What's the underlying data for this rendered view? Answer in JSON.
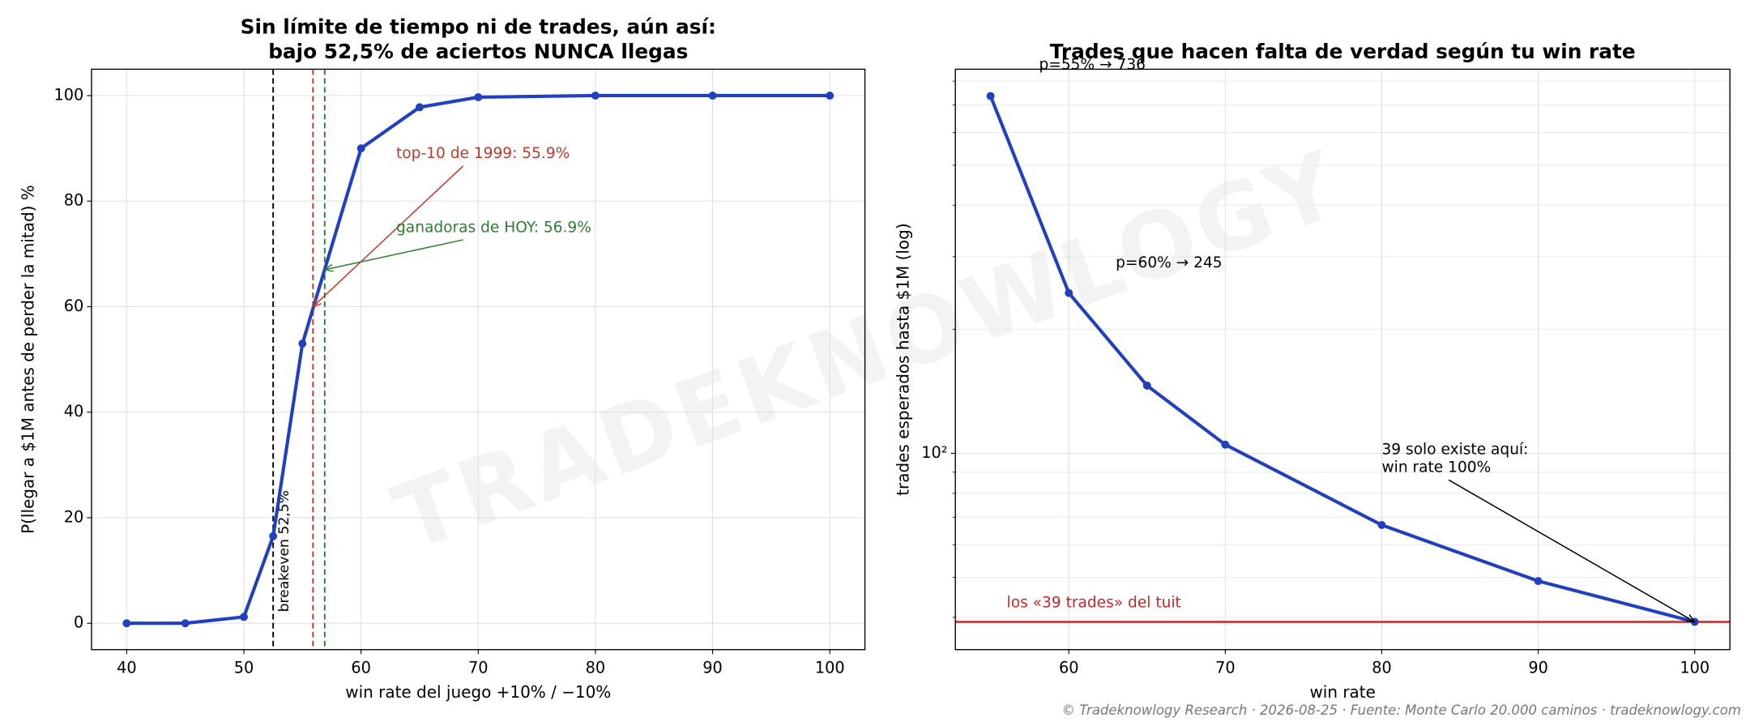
{
  "chart_data": [
    {
      "type": "line",
      "title": [
        "Sin límite de tiempo ni de trades, aún así:",
        "bajo 52,5% de aciertos NUNCA llegas"
      ],
      "xlabel": "win rate del juego +10% / −10%",
      "ylabel": "P(llegar a $1M antes de perder la mitad) %",
      "x": [
        40,
        45,
        50,
        52.5,
        55,
        60,
        65,
        70,
        80,
        90,
        100
      ],
      "values": [
        0,
        0,
        1.2,
        16.5,
        53,
        90,
        97.8,
        99.7,
        100,
        100,
        100
      ],
      "color": "#2140c0",
      "xlim": [
        37,
        103
      ],
      "ylim": [
        -5,
        105
      ],
      "xticks": [
        40,
        50,
        60,
        70,
        80,
        90,
        100
      ],
      "yticks": [
        0,
        20,
        40,
        60,
        80,
        100
      ],
      "grid": true,
      "log": false,
      "vlines": [
        {
          "x": 52.5,
          "color": "#000000",
          "label": "breakeven 52,5%"
        },
        {
          "x": 55.9,
          "color": "#c0392b"
        },
        {
          "x": 56.9,
          "color": "#2e7d32"
        }
      ],
      "annotations": [
        {
          "text": "top-10 de 1999: 55.9%",
          "xy": [
            55.9,
            60
          ],
          "xytext": [
            63,
            89
          ],
          "color": "#c0392b"
        },
        {
          "text": "ganadoras de HOY: 56.9%",
          "xy": [
            56.9,
            67
          ],
          "xytext": [
            63,
            75
          ],
          "color": "#2e7d32"
        }
      ]
    },
    {
      "type": "line",
      "title": [
        "Trades que hacen falta de verdad según tu win rate"
      ],
      "xlabel": "win rate",
      "ylabel": "trades esperados hasta $1M (log)",
      "x": [
        55,
        60,
        65,
        70,
        80,
        90,
        100
      ],
      "values": [
        736,
        245,
        146,
        105,
        67,
        49,
        39
      ],
      "color": "#2140c0",
      "xlim": [
        52.75,
        102.25
      ],
      "ylim": [
        33.4,
        855
      ],
      "xticks": [
        60,
        70,
        80,
        90,
        100
      ],
      "yticks": [
        {
          "value": 100,
          "label": "10²"
        }
      ],
      "yminor": [
        40,
        50,
        60,
        70,
        80,
        90,
        200,
        300,
        400,
        500,
        600,
        700,
        800
      ],
      "grid": true,
      "log": true,
      "hline": {
        "y": 39,
        "color": "#c62828",
        "label": "los «39 trades» del tuit"
      },
      "annotations": [
        {
          "text": "p=55% → 736",
          "xytext": [
            58.1,
            877
          ],
          "color": "#000000"
        },
        {
          "text": "p=60% → 245",
          "xytext": [
            63,
            290
          ],
          "color": "#000000"
        },
        {
          "text": [
            "39 solo existe aquí:",
            "win rate 100%"
          ],
          "xy": [
            100,
            39
          ],
          "xytext": [
            80,
            102
          ],
          "color": "#000000"
        }
      ]
    }
  ],
  "watermark": "TRADEKNOWLOGY",
  "footer": "© Tradeknowlogy Research   ·   2026-08-25   ·   Fuente: Monte Carlo 20.000 caminos   ·   tradeknowlogy.com"
}
